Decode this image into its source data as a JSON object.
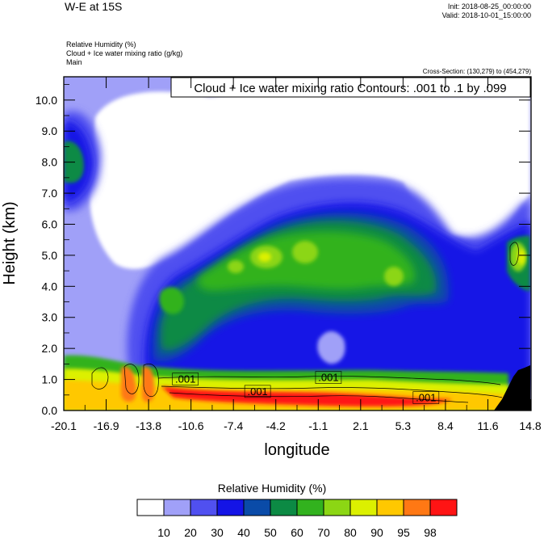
{
  "header": {
    "title": "W-E at 15S",
    "init": "Init: 2018-08-25_00:00:00",
    "valid": "Valid: 2018-10-01_15:00:00",
    "fields": [
      "Relative Humidity   (%)",
      "Cloud + Ice water mixing ratio   (g/kg)",
      "Main"
    ],
    "cross_section": "Cross-Section: (130,279) to (454,279)"
  },
  "chart_data": {
    "type": "heatmap",
    "xlabel": "longitude",
    "ylabel": "Height (km)",
    "xticks": [
      "-20.1",
      "-16.9",
      "-13.8",
      "-10.6",
      "-7.4",
      "-4.2",
      "-1.1",
      "2.1",
      "5.3",
      "8.4",
      "11.6",
      "14.8"
    ],
    "xlim": [
      -20.1,
      14.8
    ],
    "ylim": [
      0,
      10.75
    ],
    "yticks": [
      0.0,
      1.0,
      2.0,
      3.0,
      4.0,
      5.0,
      6.0,
      7.0,
      8.0,
      9.0,
      10.0
    ],
    "ytick_labels": [
      "0.0",
      "1.0",
      "2.0",
      "3.0",
      "4.0",
      "5.0",
      "6.0",
      "7.0",
      "8.0",
      "9.0",
      "10.0"
    ],
    "contour_info": "Cloud + Ice water mixing ratio Contours: .001 to .1 by .099",
    "contour_labels": [
      {
        "text": ".001",
        "x": -11.0,
        "y": 0.95
      },
      {
        "text": ".001",
        "x": -5.6,
        "y": 0.55
      },
      {
        "text": ".001",
        "x": -0.3,
        "y": 1.0
      },
      {
        "text": ".001",
        "x": 7.0,
        "y": 0.35
      }
    ],
    "colorbar": {
      "title": "Relative Humidity  (%)",
      "levels": [
        "10",
        "20",
        "30",
        "40",
        "50",
        "60",
        "70",
        "80",
        "90",
        "95",
        "98"
      ],
      "colors": [
        "#ffffff",
        "#a0a0f8",
        "#5050f0",
        "#1414e6",
        "#0a4ba8",
        "#0c8a44",
        "#32b21e",
        "#8cd614",
        "#dcf000",
        "#ffc800",
        "#ff7814",
        "#ff1414"
      ]
    },
    "terrain_color": "#000000"
  }
}
